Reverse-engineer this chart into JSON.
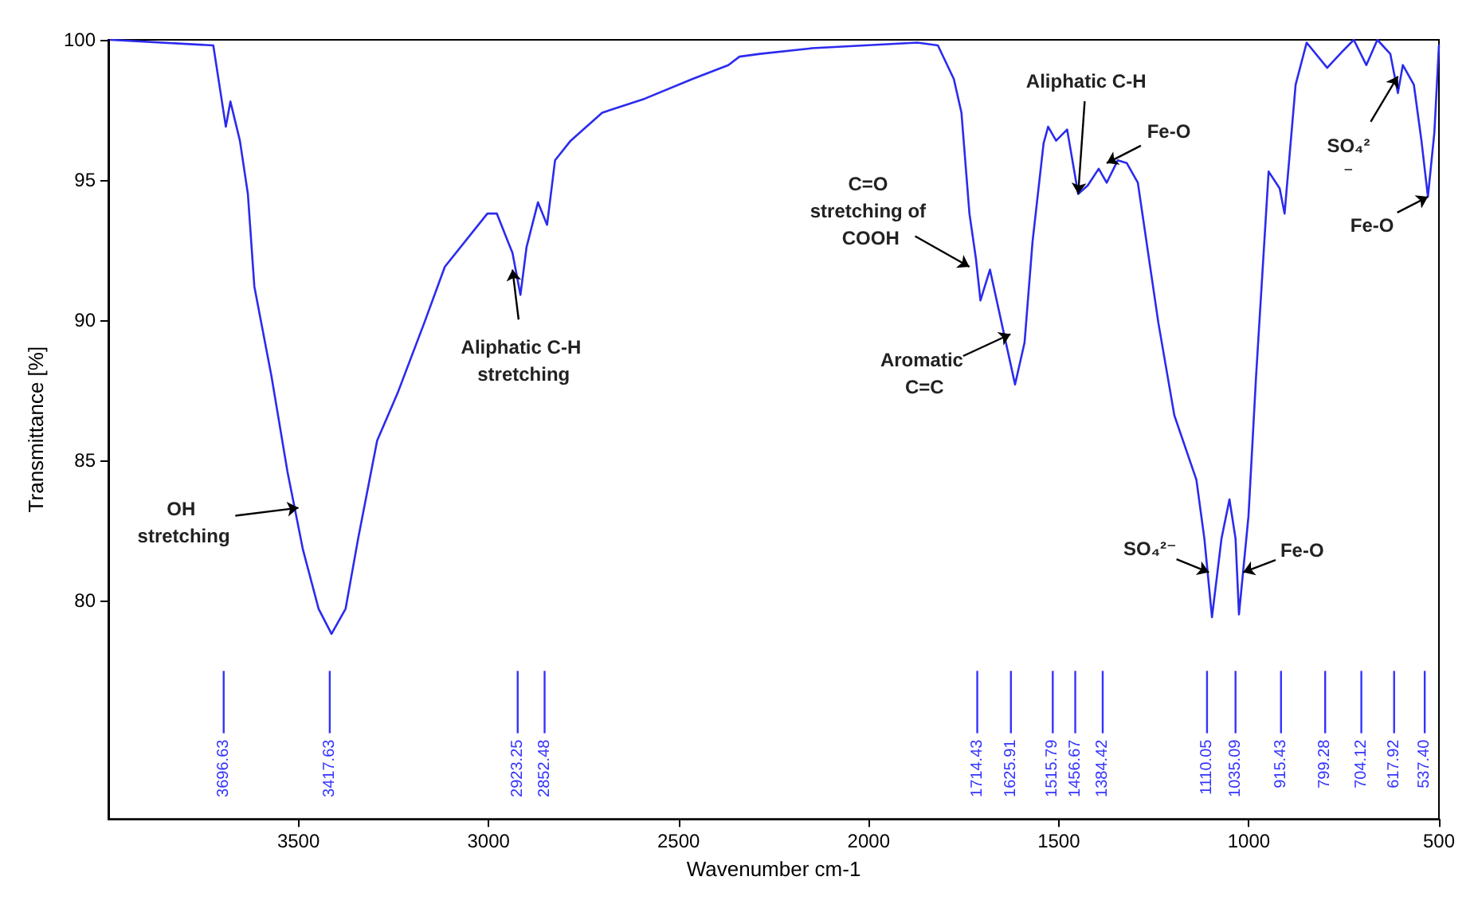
{
  "chart_data": {
    "type": "line",
    "xlabel": "Wavenumber cm-1",
    "ylabel": "Transmittance [%]",
    "color": "#2b2bee",
    "xlim": [
      4000,
      500
    ],
    "xticks": [
      3500,
      3000,
      2500,
      2000,
      1500,
      1000,
      500
    ],
    "ylim": [
      72.2,
      100
    ],
    "yticks": [
      80,
      85,
      90,
      95,
      100
    ],
    "x": [
      3994,
      3724,
      3691,
      3679,
      3654,
      3633,
      3616,
      3571,
      3529,
      3488,
      3447,
      3413,
      3376,
      3343,
      3293,
      3239,
      3169,
      3115,
      3003,
      2978,
      2949,
      2937,
      2916,
      2900,
      2870,
      2846,
      2825,
      2784,
      2701,
      2589,
      2464,
      2369,
      2340,
      2286,
      2149,
      1872,
      1818,
      1776,
      1756,
      1735,
      1718,
      1706,
      1681,
      1644,
      1615,
      1590,
      1569,
      1540,
      1528,
      1507,
      1478,
      1449,
      1424,
      1395,
      1374,
      1345,
      1321,
      1292,
      1238,
      1196,
      1138,
      1117,
      1097,
      1072,
      1051,
      1035,
      1026,
      1001,
      981,
      948,
      919,
      906,
      877,
      848,
      794,
      753,
      724,
      691,
      662,
      628,
      608,
      595,
      566,
      546,
      529,
      512,
      500
    ],
    "values": [
      100,
      99.8,
      96.9,
      97.8,
      96.4,
      94.5,
      91.2,
      88.0,
      84.6,
      81.8,
      79.7,
      78.8,
      79.7,
      82.2,
      85.7,
      87.4,
      89.9,
      91.9,
      93.8,
      93.8,
      92.8,
      92.4,
      90.9,
      92.6,
      94.2,
      93.4,
      95.7,
      96.4,
      97.4,
      97.9,
      98.6,
      99.1,
      99.4,
      99.5,
      99.7,
      99.9,
      99.8,
      98.6,
      97.4,
      93.8,
      92.2,
      90.7,
      91.8,
      89.5,
      87.7,
      89.2,
      92.8,
      96.3,
      96.9,
      96.4,
      96.8,
      94.5,
      94.8,
      95.4,
      94.9,
      95.7,
      95.6,
      94.9,
      89.9,
      86.6,
      84.3,
      82.2,
      79.4,
      82.2,
      83.6,
      82.2,
      79.5,
      83.0,
      88.0,
      95.3,
      94.7,
      93.8,
      98.4,
      99.9,
      99.0,
      99.6,
      100,
      99.1,
      100,
      99.5,
      98.1,
      99.1,
      98.4,
      96.4,
      94.4,
      96.7,
      99.8
    ],
    "ref_lines": [
      {
        "axis": "x",
        "value": 3696.63,
        "label": "3696.63",
        "color": "#3333ff"
      },
      {
        "axis": "x",
        "value": 3417.63,
        "label": "3417.63",
        "color": "#3333ff"
      },
      {
        "axis": "x",
        "value": 2923.25,
        "label": "2923.25",
        "color": "#3333ff"
      },
      {
        "axis": "x",
        "value": 2852.48,
        "label": "2852.48",
        "color": "#3333ff"
      },
      {
        "axis": "x",
        "value": 1714.43,
        "label": "1714.43",
        "color": "#3333ff"
      },
      {
        "axis": "x",
        "value": 1625.91,
        "label": "1625.91",
        "color": "#3333ff"
      },
      {
        "axis": "x",
        "value": 1515.79,
        "label": "1515.79",
        "color": "#3333ff"
      },
      {
        "axis": "x",
        "value": 1456.67,
        "label": "1456.67",
        "color": "#3333ff"
      },
      {
        "axis": "x",
        "value": 1384.42,
        "label": "1384.42",
        "color": "#3333ff"
      },
      {
        "axis": "x",
        "value": 1110.05,
        "label": "1110.05",
        "color": "#3333ff"
      },
      {
        "axis": "x",
        "value": 1035.09,
        "label": "1035.09",
        "color": "#3333ff"
      },
      {
        "axis": "x",
        "value": 915.43,
        "label": "915.43",
        "color": "#3333ff"
      },
      {
        "axis": "x",
        "value": 799.28,
        "label": "799.28",
        "color": "#3333ff"
      },
      {
        "axis": "x",
        "value": 704.12,
        "label": "704.12",
        "color": "#3333ff"
      },
      {
        "axis": "x",
        "value": 617.92,
        "label": "617.92",
        "color": "#3333ff"
      },
      {
        "axis": "x",
        "value": 537.4,
        "label": "537.40",
        "color": "#3333ff"
      }
    ],
    "annotations": [
      {
        "text": "OH stretching",
        "x": 3500,
        "y": 83.3
      },
      {
        "text": "Aliphatic C-H stretching",
        "x": 2937,
        "y": 91.8
      },
      {
        "text": "C=O stretching of COOH",
        "x": 1735,
        "y": 91.9
      },
      {
        "text": "Aromatic C=C",
        "x": 1627,
        "y": 89.5
      },
      {
        "text": "Aliphatic C-H",
        "x": 1449,
        "y": 94.5
      },
      {
        "text": "Fe-O",
        "x": 1374,
        "y": 95.6
      },
      {
        "text": "SO₄²⁻",
        "x": 1105,
        "y": 81.0
      },
      {
        "text": "Fe-O",
        "x": 1015,
        "y": 81.0
      },
      {
        "text": "SO₄²⁻",
        "x": 608,
        "y": 98.7
      },
      {
        "text": "Fe-O",
        "x": 529,
        "y": 94.4
      }
    ]
  }
}
